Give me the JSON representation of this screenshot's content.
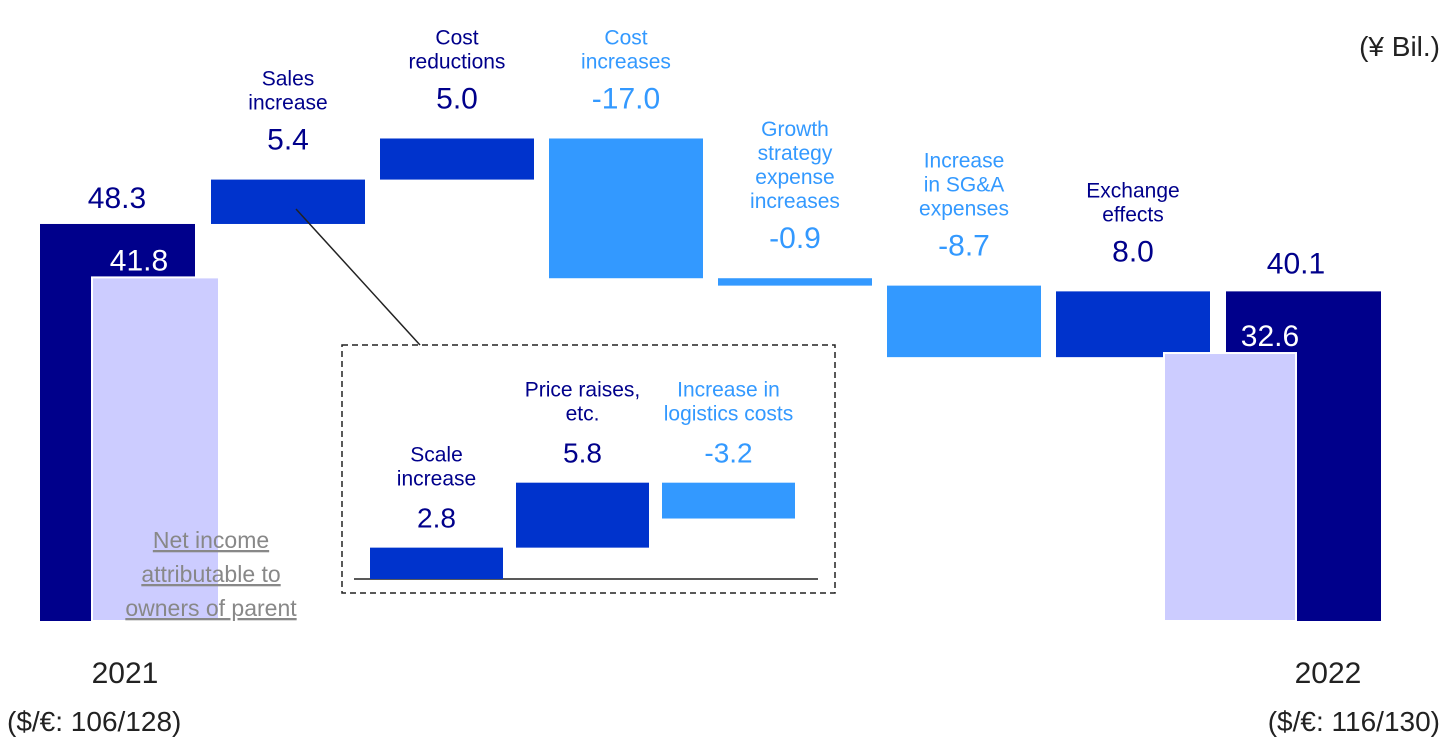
{
  "chart_data": {
    "type": "bar",
    "subtype": "waterfall",
    "unit": "(¥ Bil.)",
    "colors": {
      "total": "#00008b",
      "positive": "#0033cc",
      "negative": "#3399ff",
      "net_income": "#ccccff",
      "text_dark": "#00008b",
      "text_light": "#3399ff",
      "text_grey": "#888888"
    },
    "main": {
      "value_range": [
        0,
        50
      ],
      "start": {
        "label": "2021",
        "rate": "($/€: 106/128)",
        "value": 48.3,
        "value_label": "48.3",
        "net_income": 41.8,
        "net_income_label": "41.8"
      },
      "steps": [
        {
          "name_lines": [
            "Sales",
            "increase"
          ],
          "value": 5.4,
          "value_label": "5.4",
          "kind": "positive"
        },
        {
          "name_lines": [
            "Cost",
            "reductions"
          ],
          "value": 5.0,
          "value_label": "5.0",
          "kind": "positive"
        },
        {
          "name_lines": [
            "Cost",
            "increases"
          ],
          "value": -17.0,
          "value_label": "-17.0",
          "kind": "negative"
        },
        {
          "name_lines": [
            "Growth",
            "strategy",
            "expense",
            "increases"
          ],
          "value": -0.9,
          "value_label": "-0.9",
          "kind": "negative"
        },
        {
          "name_lines": [
            "Increase",
            "in SG&A",
            "expenses"
          ],
          "value": -8.7,
          "value_label": "-8.7",
          "kind": "negative"
        },
        {
          "name_lines": [
            "Exchange",
            "effects"
          ],
          "value": 8.0,
          "value_label": "8.0",
          "kind": "positive"
        }
      ],
      "end": {
        "label": "2022",
        "rate": "($/€: 116/130)",
        "value": 40.1,
        "value_label": "40.1",
        "net_income": 32.6,
        "net_income_label": "32.6"
      },
      "net_income_legend_lines": [
        "Net income",
        "attributable to",
        "owners of parent"
      ]
    },
    "breakdown": {
      "of_step": "Sales increase",
      "steps": [
        {
          "name_lines": [
            "Scale",
            "increase"
          ],
          "value": 2.8,
          "value_label": "2.8",
          "kind": "positive"
        },
        {
          "name_lines": [
            "Price raises,",
            "etc."
          ],
          "value": 5.8,
          "value_label": "5.8",
          "kind": "positive"
        },
        {
          "name_lines": [
            "Increase in",
            "logistics costs"
          ],
          "value": -3.2,
          "value_label": "-3.2",
          "kind": "negative"
        }
      ]
    }
  }
}
